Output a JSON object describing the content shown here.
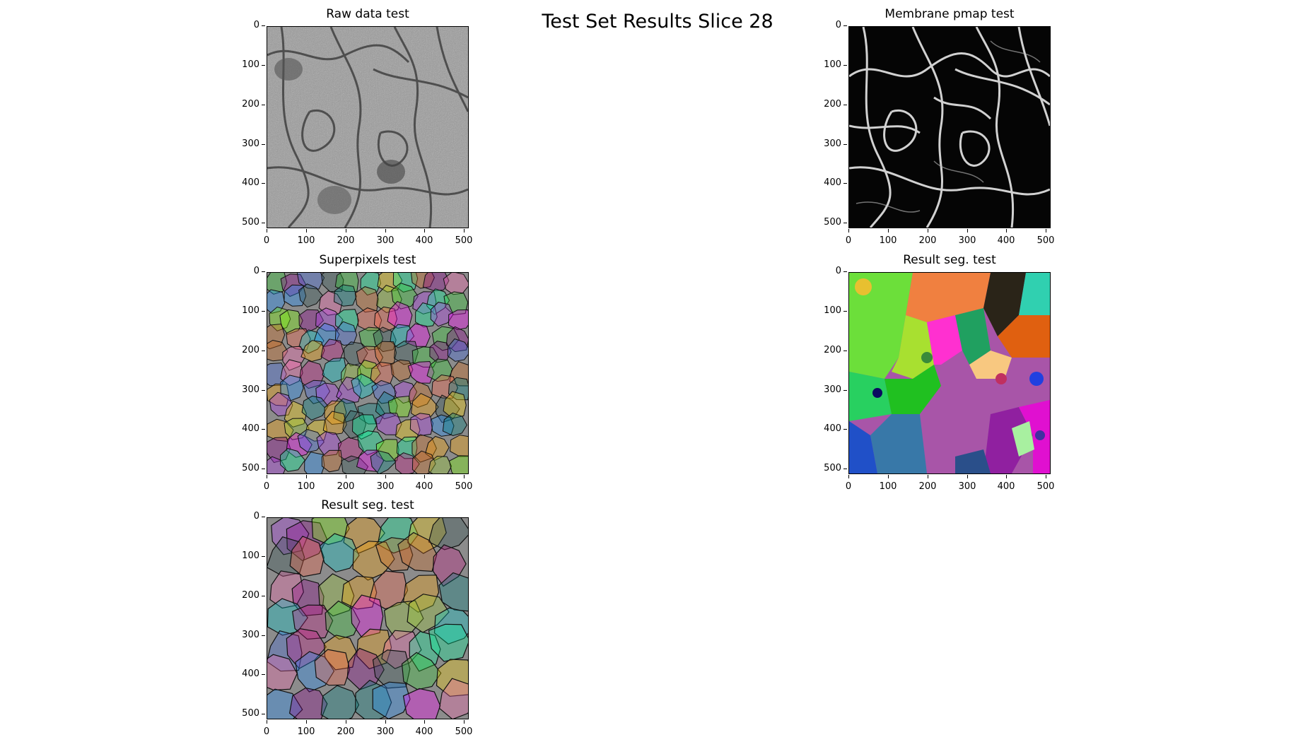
{
  "figure": {
    "title": "Test Set Results Slice 28",
    "panels": [
      {
        "title": "Raw data test",
        "kind": "raw"
      },
      {
        "title": "Membrane pmap test",
        "kind": "pmap"
      },
      {
        "title": "Superpixels test",
        "kind": "superpixels"
      },
      {
        "title": "Result seg. test",
        "kind": "segmentation-colored"
      },
      {
        "title": "Result seg. test",
        "kind": "segmentation-overlay"
      }
    ],
    "axes": {
      "x_ticks": [
        "0",
        "100",
        "200",
        "300",
        "400",
        "500"
      ],
      "y_ticks": [
        "0",
        "100",
        "200",
        "300",
        "400",
        "500"
      ],
      "range": [
        0,
        512
      ]
    },
    "palette": [
      "#7CFC00",
      "#ff00ff",
      "#1e90ff",
      "#b23aee",
      "#ffd700",
      "#00ced1",
      "#ff6347",
      "#32cd32",
      "#8b008b",
      "#4169e1",
      "#ffa500",
      "#00fa9a",
      "#c71585",
      "#2f4f4f",
      "#9acd32",
      "#ff69b4",
      "#008080",
      "#d2691e"
    ]
  }
}
